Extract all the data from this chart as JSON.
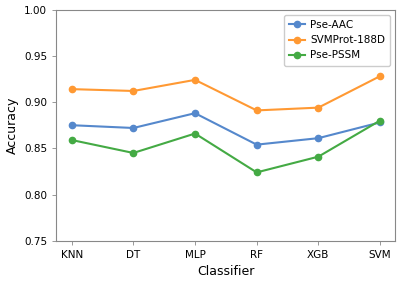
{
  "classifiers": [
    "KNN",
    "DT",
    "MLP",
    "RF",
    "XGB",
    "SVM"
  ],
  "series": [
    {
      "label": "Pse-AAC",
      "color": "#5588cc",
      "values": [
        0.875,
        0.872,
        0.888,
        0.854,
        0.861,
        0.878
      ]
    },
    {
      "label": "SVMProt-188D",
      "color": "#ff9933",
      "values": [
        0.914,
        0.912,
        0.924,
        0.891,
        0.894,
        0.928
      ]
    },
    {
      "label": "Pse-PSSM",
      "color": "#44aa44",
      "values": [
        0.859,
        0.845,
        0.866,
        0.824,
        0.841,
        0.88
      ]
    }
  ],
  "xlabel": "Classifier",
  "ylabel": "Accuracy",
  "ylim": [
    0.75,
    1.0
  ],
  "yticks": [
    0.75,
    0.8,
    0.85,
    0.9,
    0.95,
    1.0
  ],
  "legend_loc": "upper right",
  "background_color": "#ffffff",
  "tick_fontsize": 7.5,
  "label_fontsize": 9,
  "legend_fontsize": 7.5,
  "marker_size": 4.5,
  "line_width": 1.5
}
